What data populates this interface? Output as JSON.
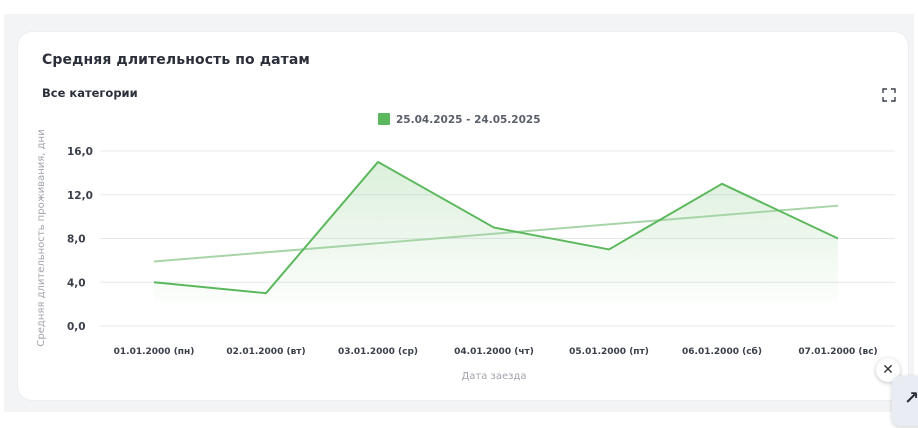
{
  "card": {
    "title": "Средняя длительность по датам",
    "subtitle": "Все категории"
  },
  "colors": {
    "series": "#5cb85c",
    "trend": "#a8d5a8",
    "area_top": "#5cb85c",
    "grid": "#e6e8eb"
  },
  "icons": {
    "expand": "expand-icon",
    "close": "close-icon"
  },
  "chart_data": {
    "type": "line",
    "title": "",
    "xlabel": "Дата заезда",
    "ylabel": "Средняя длительность проживания, дни",
    "categories": [
      "01.01.2000 (пн)",
      "02.01.2000 (вт)",
      "03.01.2000 (ср)",
      "04.01.2000 (чт)",
      "05.01.2000 (пт)",
      "06.01.2000 (сб)",
      "07.01.2000 (вс)"
    ],
    "series": [
      {
        "name": "25.04.2025 - 24.05.2025",
        "values": [
          4,
          3,
          15,
          9,
          7,
          13,
          8
        ]
      }
    ],
    "trendline": {
      "start": 5.9,
      "end": 11.0
    },
    "ylim": [
      0,
      16
    ],
    "yticks": [
      "0,0",
      "4,0",
      "8,0",
      "12,0",
      "16,0"
    ],
    "ytick_values": [
      0,
      4,
      8,
      12,
      16
    ],
    "grid": true,
    "legend": "top-center",
    "area_fill": true
  }
}
